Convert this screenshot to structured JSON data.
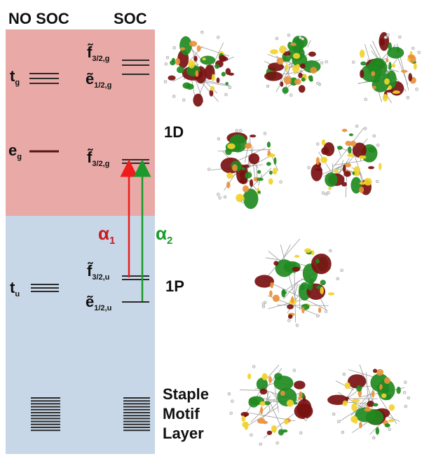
{
  "header": {
    "left": "NO SOC",
    "right": "SOC"
  },
  "colors": {
    "upper_region": "#e8a9a7",
    "lower_region": "#c8d7e7",
    "arrow_alpha1": "#ee1c1c",
    "arrow_alpha2": "#1a9a2a",
    "level_line": "#2b2b2b",
    "eg_line": "#5a1212"
  },
  "levels": {
    "tg": {
      "base": "t",
      "sub": "g"
    },
    "eg": {
      "base": "e",
      "sub": "g"
    },
    "tu": {
      "base": "t",
      "sub": "u"
    },
    "f32g_upper": {
      "base": "f̃",
      "sub": "3/2,g"
    },
    "e12g": {
      "base": "ẽ",
      "sub": "1/2,g"
    },
    "f32g_lower": {
      "base": "f̃",
      "sub": "3/2,g"
    },
    "f32u": {
      "base": "f̃",
      "sub": "3/2,u"
    },
    "e12u": {
      "base": "ẽ",
      "sub": "1/2,u"
    }
  },
  "transitions": [
    {
      "symbol": "α",
      "sub": "1",
      "color": "#ee1c1c"
    },
    {
      "symbol": "α",
      "sub": "2",
      "color": "#1a9a2a"
    }
  ],
  "labels": {
    "d_state": "1D",
    "p_state": "1P",
    "staple_1": "Staple",
    "staple_2": "Motif",
    "staple_3": "Layer"
  },
  "orbitals": {
    "count": 8,
    "colors": [
      "#1f8a1f",
      "#7a1010",
      "#f2d22e",
      "#e8913a"
    ]
  }
}
